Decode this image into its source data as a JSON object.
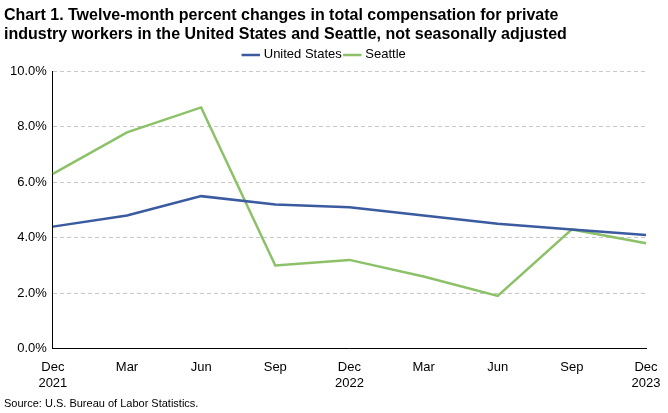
{
  "chart_data": {
    "type": "line",
    "title": [
      "Chart 1. Twelve-month percent changes in total compensation for private",
      "industry workers in the United States and Seattle, not seasonally adjusted"
    ],
    "source": "Source: U.S. Bureau of Labor Statistics.",
    "categories": [
      "Dec 2021",
      "Mar",
      "Jun",
      "Sep",
      "Dec 2022",
      "Mar",
      "Jun",
      "Sep",
      "Dec 2023"
    ],
    "series": [
      {
        "name": "United States",
        "color": "#3a5ba0",
        "values": [
          4.4,
          4.8,
          5.5,
          5.2,
          5.1,
          4.8,
          4.5,
          4.3,
          4.1
        ]
      },
      {
        "name": "Seattle",
        "color": "#8cc168",
        "values": [
          6.3,
          7.8,
          8.7,
          3.0,
          3.2,
          2.6,
          1.9,
          4.3,
          3.8
        ]
      }
    ],
    "ylim": [
      0,
      10
    ],
    "yticks": [
      {
        "value": 0,
        "label": "0.0%"
      },
      {
        "value": 2,
        "label": "2.0%"
      },
      {
        "value": 4,
        "label": "4.0%"
      },
      {
        "value": 6,
        "label": "6.0%"
      },
      {
        "value": 8,
        "label": "8.0%"
      },
      {
        "value": 10,
        "label": "10.0%"
      }
    ],
    "grid": true,
    "legend": "top"
  }
}
